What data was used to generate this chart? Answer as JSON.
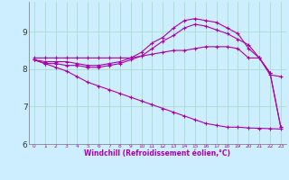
{
  "bg_color": "#cceeff",
  "grid_color": "#aaddcc",
  "line_color": "#aa00aa",
  "xlabel": "Windchill (Refroidissement éolien,°C)",
  "xlabel_color": "#aa00aa",
  "xtick_color": "#aa00aa",
  "ytick_color": "#333333",
  "xlim": [
    -0.5,
    23.5
  ],
  "ylim": [
    6.0,
    9.8
  ],
  "yticks": [
    6,
    7,
    8,
    9
  ],
  "xticks": [
    0,
    1,
    2,
    3,
    4,
    5,
    6,
    7,
    8,
    9,
    10,
    11,
    12,
    13,
    14,
    15,
    16,
    17,
    18,
    19,
    20,
    21,
    22,
    23
  ],
  "series": [
    {
      "x": [
        0,
        1,
        2,
        3,
        4,
        5,
        6,
        7,
        8,
        9,
        10,
        11,
        12,
        13,
        14,
        15,
        16,
        17,
        18,
        19,
        20,
        21,
        22,
        23
      ],
      "y": [
        8.3,
        8.3,
        8.3,
        8.3,
        8.3,
        8.3,
        8.3,
        8.3,
        8.3,
        8.3,
        8.35,
        8.4,
        8.45,
        8.5,
        8.5,
        8.55,
        8.6,
        8.6,
        8.6,
        8.55,
        8.3,
        8.3,
        7.85,
        7.8
      ]
    },
    {
      "x": [
        0,
        1,
        2,
        3,
        4,
        5,
        6,
        7,
        8,
        9,
        10,
        11,
        12,
        13,
        14,
        15,
        16,
        17,
        18,
        19,
        20,
        21,
        22,
        23
      ],
      "y": [
        8.25,
        8.2,
        8.2,
        8.2,
        8.15,
        8.1,
        8.1,
        8.15,
        8.2,
        8.3,
        8.45,
        8.7,
        8.85,
        9.1,
        9.3,
        9.35,
        9.3,
        9.25,
        9.1,
        8.95,
        8.55,
        8.3,
        7.9,
        6.45
      ]
    },
    {
      "x": [
        0,
        1,
        2,
        3,
        4,
        5,
        6,
        7,
        8,
        9,
        10,
        11,
        12,
        13,
        14,
        15,
        16,
        17,
        18,
        19,
        20,
        21,
        22,
        23
      ],
      "y": [
        8.25,
        8.15,
        8.15,
        8.1,
        8.1,
        8.05,
        8.05,
        8.1,
        8.15,
        8.25,
        8.35,
        8.55,
        8.75,
        8.9,
        9.1,
        9.2,
        9.15,
        9.05,
        8.95,
        8.8,
        8.65,
        8.3,
        7.9,
        6.45
      ]
    },
    {
      "x": [
        0,
        1,
        2,
        3,
        4,
        5,
        6,
        7,
        8,
        9,
        10,
        11,
        12,
        13,
        14,
        15,
        16,
        17,
        18,
        19,
        20,
        21,
        22,
        23
      ],
      "y": [
        8.25,
        8.15,
        8.05,
        7.95,
        7.8,
        7.65,
        7.55,
        7.45,
        7.35,
        7.25,
        7.15,
        7.05,
        6.95,
        6.85,
        6.75,
        6.65,
        6.55,
        6.5,
        6.45,
        6.45,
        6.43,
        6.42,
        6.41,
        6.4
      ]
    }
  ]
}
